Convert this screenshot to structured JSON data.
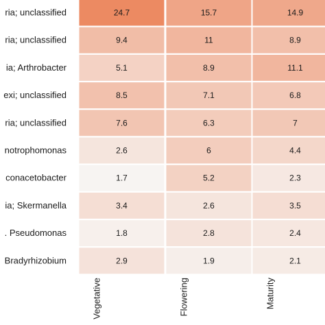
{
  "chart_data": {
    "type": "heatmap",
    "rows": [
      "ria; unclassified",
      "ria; unclassified",
      "ia; Arthrobacter",
      "exi; unclassified",
      "ria; unclassified",
      "notrophomonas",
      "conacetobacter",
      "ia; Skermanella",
      ". Pseudomonas",
      "Bradyrhizobium"
    ],
    "columns": [
      "Vegetative",
      "Flowering",
      "Maturity"
    ],
    "values": [
      [
        24.7,
        15.7,
        14.9
      ],
      [
        9.4,
        11,
        8.9
      ],
      [
        5.1,
        8.9,
        11.1
      ],
      [
        8.5,
        7.1,
        6.8
      ],
      [
        7.6,
        6.3,
        7
      ],
      [
        2.6,
        6,
        4.4
      ],
      [
        1.7,
        5.2,
        2.3
      ],
      [
        3.4,
        2.6,
        3.5
      ],
      [
        1.8,
        2.8,
        2.4
      ],
      [
        2.9,
        1.9,
        2.1
      ]
    ],
    "color_low": "#f7f4f2",
    "color_high": "#ec8a62",
    "grid": true
  }
}
